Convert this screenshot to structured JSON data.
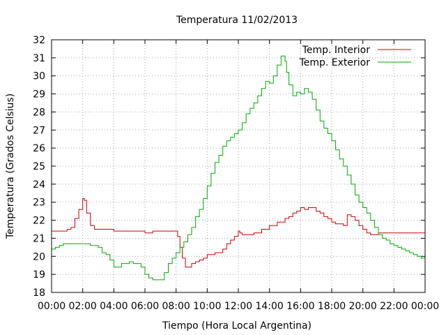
{
  "chart_data": {
    "type": "line",
    "title": "Temperatura 11/02/2013",
    "xlabel": "Tiempo (Hora Local Argentina)",
    "ylabel": "Temperatura (Grados Celsius)",
    "xlim": [
      0,
      24
    ],
    "ylim": [
      18,
      32
    ],
    "x_tick_labels": [
      "00:00",
      "02:00",
      "04:00",
      "06:00",
      "08:00",
      "10:00",
      "12:00",
      "14:00",
      "16:00",
      "18:00",
      "20:00",
      "22:00",
      "00:00"
    ],
    "y_tick_labels": [
      "18",
      "19",
      "20",
      "21",
      "22",
      "23",
      "24",
      "25",
      "26",
      "27",
      "28",
      "29",
      "30",
      "31",
      "32"
    ],
    "grid": true,
    "legend_position": "top-right",
    "series": [
      {
        "name": "Temp. Interior",
        "color": "#cc0000",
        "x": [
          0,
          0.5,
          1,
          1.25,
          1.5,
          1.75,
          2,
          2.1,
          2.25,
          2.5,
          2.75,
          3,
          3.5,
          4,
          4.5,
          5,
          5.5,
          6,
          6.5,
          7,
          7.5,
          8,
          8.1,
          8.25,
          8.4,
          8.6,
          8.75,
          9,
          9.25,
          9.5,
          9.75,
          10,
          10.5,
          11,
          11.25,
          11.5,
          11.75,
          12,
          12.1,
          12.25,
          12.5,
          12.75,
          13,
          13.5,
          14,
          14.5,
          15,
          15.25,
          15.5,
          15.75,
          16,
          16.25,
          16.5,
          16.75,
          17,
          17.25,
          17.5,
          17.75,
          18,
          18.25,
          18.5,
          18.75,
          19,
          19.25,
          19.5,
          19.75,
          20,
          20.25,
          20.5,
          20.75,
          21,
          21.5,
          22,
          22.5,
          23,
          23.5,
          24
        ],
        "values": [
          21.4,
          21.4,
          21.5,
          21.6,
          22.1,
          22.6,
          23.2,
          23.1,
          22.4,
          21.7,
          21.5,
          21.5,
          21.5,
          21.4,
          21.4,
          21.4,
          21.4,
          21.3,
          21.4,
          21.4,
          21.4,
          21.4,
          21.1,
          20.5,
          19.9,
          19.4,
          19.4,
          19.6,
          19.7,
          19.8,
          19.9,
          20.1,
          20.2,
          20.4,
          20.7,
          20.9,
          21.1,
          21.4,
          21.3,
          21.2,
          21.2,
          21.2,
          21.3,
          21.5,
          21.7,
          21.9,
          22.1,
          22.2,
          22.4,
          22.5,
          22.7,
          22.6,
          22.7,
          22.7,
          22.5,
          22.4,
          22.2,
          22.1,
          21.9,
          21.8,
          21.8,
          21.7,
          22.3,
          22.2,
          22.0,
          21.7,
          21.5,
          21.3,
          21.2,
          21.2,
          21.3,
          21.3,
          21.3,
          21.3,
          21.3,
          21.3,
          21.3
        ]
      },
      {
        "name": "Temp. Exterior",
        "color": "#00aa00",
        "x": [
          0,
          0.25,
          0.5,
          0.75,
          1,
          1.5,
          2,
          2.5,
          3,
          3.25,
          3.5,
          3.75,
          4,
          4.25,
          4.5,
          5,
          5.25,
          5.5,
          5.75,
          6,
          6.25,
          6.5,
          7,
          7.25,
          7.5,
          7.75,
          8,
          8.25,
          8.5,
          8.75,
          9,
          9.25,
          9.5,
          9.75,
          10,
          10.25,
          10.5,
          10.75,
          11,
          11.25,
          11.5,
          11.75,
          12,
          12.25,
          12.5,
          12.75,
          13,
          13.25,
          13.5,
          13.75,
          14,
          14.25,
          14.5,
          14.75,
          15,
          15.1,
          15.25,
          15.5,
          15.75,
          16,
          16.25,
          16.5,
          16.75,
          17,
          17.25,
          17.5,
          17.75,
          18,
          18.25,
          18.5,
          18.75,
          19,
          19.25,
          19.5,
          19.75,
          20,
          20.25,
          20.5,
          20.75,
          21,
          21.25,
          21.5,
          21.75,
          22,
          22.25,
          22.5,
          22.75,
          23,
          23.25,
          23.5,
          23.75,
          24
        ],
        "values": [
          20.4,
          20.5,
          20.6,
          20.7,
          20.7,
          20.7,
          20.7,
          20.6,
          20.5,
          20.2,
          20.1,
          19.8,
          19.4,
          19.4,
          19.6,
          19.7,
          19.6,
          19.6,
          19.4,
          19.0,
          18.8,
          18.7,
          18.7,
          19.1,
          19.6,
          19.9,
          20.2,
          20.5,
          20.8,
          21.2,
          21.6,
          22.2,
          22.6,
          23.2,
          23.9,
          24.6,
          25.2,
          25.6,
          26.1,
          26.4,
          26.6,
          26.8,
          27.0,
          27.4,
          27.9,
          28.2,
          28.5,
          28.9,
          29.3,
          29.7,
          29.6,
          30.0,
          30.6,
          31.1,
          30.8,
          30.2,
          29.5,
          28.9,
          29.1,
          29.0,
          29.3,
          29.1,
          28.7,
          28.1,
          27.5,
          27.1,
          26.8,
          26.4,
          25.9,
          25.4,
          25.0,
          24.5,
          24.0,
          23.4,
          23.0,
          22.7,
          22.4,
          22.0,
          21.6,
          21.2,
          21.0,
          20.9,
          20.7,
          20.6,
          20.5,
          20.4,
          20.3,
          20.2,
          20.1,
          20.0,
          19.9,
          19.9
        ]
      }
    ]
  }
}
